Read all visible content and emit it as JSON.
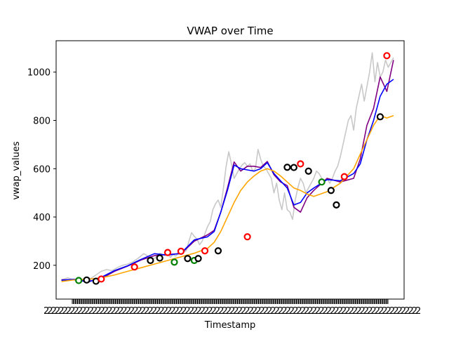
{
  "chart_data": {
    "type": "line",
    "title": "VWAP over Time",
    "xlabel": "Timestamp",
    "ylabel": "vwap_values",
    "ylim": [
      60,
      1130
    ],
    "yticks": [
      200,
      400,
      600,
      800,
      1000
    ],
    "x_tick_labels_note": "dense overlapping timestamp labels (illegible)",
    "colors": {
      "price": "#c8c8c8",
      "vwap": "#800080",
      "short_ma": "#0000ff",
      "long_ma": "#ffa500",
      "marker_red": "#ff0000",
      "marker_green": "#008000",
      "marker_black": "#000000"
    },
    "series": [
      {
        "key": "price",
        "x": [
          0,
          5,
          10,
          14,
          18,
          22,
          26,
          30,
          34,
          38,
          42,
          46,
          50,
          54,
          58,
          62,
          66,
          70,
          74,
          78,
          80,
          82,
          84,
          86,
          88,
          90,
          92,
          94,
          96,
          98,
          100,
          102,
          104,
          106,
          108,
          110,
          112,
          114,
          116,
          118,
          120,
          122,
          124,
          126,
          128,
          130,
          132,
          134,
          136,
          138,
          140,
          142,
          144,
          146,
          148,
          150,
          152,
          154,
          156,
          158,
          160,
          162,
          164,
          166,
          168,
          170,
          172,
          174,
          176,
          178,
          180,
          182,
          184,
          186,
          188,
          190,
          192,
          194,
          196,
          198,
          200,
          202,
          204,
          206,
          208,
          210,
          212,
          214,
          216,
          218,
          220,
          222,
          224,
          226,
          228,
          230,
          232,
          234,
          236,
          238,
          240,
          242,
          244,
          246,
          248,
          250
        ],
        "values": [
          140,
          148,
          138,
          128,
          150,
          145,
          160,
          175,
          182,
          178,
          190,
          200,
          205,
          215,
          230,
          248,
          235,
          228,
          250,
          240,
          255,
          232,
          245,
          238,
          250,
          270,
          255,
          260,
          300,
          335,
          320,
          310,
          285,
          300,
          330,
          360,
          380,
          430,
          455,
          470,
          440,
          520,
          610,
          670,
          620,
          560,
          580,
          600,
          615,
          625,
          610,
          620,
          590,
          600,
          680,
          640,
          610,
          600,
          580,
          560,
          500,
          540,
          470,
          430,
          500,
          430,
          420,
          390,
          470,
          520,
          560,
          540,
          500,
          520,
          540,
          560,
          590,
          580,
          560,
          545,
          560,
          540,
          560,
          590,
          610,
          650,
          700,
          750,
          800,
          820,
          760,
          850,
          900,
          950,
          880,
          940,
          1000,
          1080,
          960,
          1040,
          980,
          1000,
          1050,
          1020,
          1040,
          1060
        ],
        "lw": 1.6
      },
      {
        "key": "vwap",
        "x": [
          0,
          10,
          20,
          30,
          40,
          50,
          60,
          70,
          80,
          90,
          100,
          110,
          115,
          120,
          125,
          130,
          135,
          140,
          145,
          150,
          155,
          160,
          165,
          170,
          175,
          180,
          185,
          190,
          200,
          210,
          220,
          225,
          230,
          235,
          240,
          245,
          250
        ],
        "values": [
          140,
          140,
          133,
          145,
          175,
          197,
          222,
          240,
          245,
          248,
          300,
          326,
          345,
          420,
          520,
          628,
          590,
          610,
          610,
          605,
          630,
          575,
          545,
          530,
          440,
          420,
          480,
          510,
          560,
          545,
          560,
          640,
          780,
          850,
          980,
          920,
          1050
        ],
        "lw": 1.6
      },
      {
        "key": "short_ma",
        "x": [
          0,
          10,
          20,
          30,
          40,
          50,
          60,
          70,
          80,
          90,
          100,
          110,
          115,
          120,
          125,
          130,
          135,
          140,
          145,
          150,
          155,
          160,
          165,
          170,
          175,
          180,
          185,
          190,
          200,
          210,
          220,
          225,
          230,
          235,
          240,
          245,
          250
        ],
        "values": [
          138,
          142,
          130,
          150,
          178,
          198,
          225,
          248,
          242,
          250,
          305,
          318,
          340,
          420,
          510,
          615,
          600,
          595,
          590,
          600,
          625,
          580,
          550,
          520,
          450,
          460,
          500,
          520,
          555,
          550,
          580,
          620,
          720,
          800,
          900,
          950,
          970
        ],
        "lw": 1.6
      },
      {
        "key": "long_ma",
        "x": [
          0,
          10,
          20,
          30,
          40,
          50,
          60,
          70,
          80,
          90,
          100,
          110,
          115,
          120,
          125,
          130,
          135,
          140,
          145,
          150,
          155,
          160,
          165,
          170,
          175,
          180,
          185,
          190,
          200,
          210,
          220,
          225,
          230,
          235,
          240,
          245,
          250
        ],
        "values": [
          133,
          140,
          142,
          148,
          160,
          175,
          190,
          205,
          220,
          235,
          250,
          270,
          295,
          340,
          400,
          460,
          510,
          545,
          570,
          590,
          600,
          590,
          570,
          545,
          520,
          510,
          495,
          485,
          505,
          540,
          600,
          660,
          720,
          780,
          820,
          810,
          820
        ],
        "lw": 1.6
      }
    ],
    "markers": [
      {
        "x": 13,
        "y": 137,
        "color": "marker_green"
      },
      {
        "x": 19,
        "y": 139,
        "color": "marker_black"
      },
      {
        "x": 26,
        "y": 134,
        "color": "marker_black"
      },
      {
        "x": 30,
        "y": 143,
        "color": "marker_red"
      },
      {
        "x": 55,
        "y": 193,
        "color": "marker_red"
      },
      {
        "x": 67,
        "y": 220,
        "color": "marker_black"
      },
      {
        "x": 74,
        "y": 230,
        "color": "marker_black"
      },
      {
        "x": 80,
        "y": 253,
        "color": "marker_red"
      },
      {
        "x": 85,
        "y": 213,
        "color": "marker_green"
      },
      {
        "x": 90,
        "y": 258,
        "color": "marker_red"
      },
      {
        "x": 95,
        "y": 228,
        "color": "marker_black"
      },
      {
        "x": 100,
        "y": 220,
        "color": "marker_green"
      },
      {
        "x": 103,
        "y": 228,
        "color": "marker_black"
      },
      {
        "x": 108,
        "y": 260,
        "color": "marker_red"
      },
      {
        "x": 118,
        "y": 260,
        "color": "marker_black"
      },
      {
        "x": 140,
        "y": 318,
        "color": "marker_red"
      },
      {
        "x": 170,
        "y": 606,
        "color": "marker_black"
      },
      {
        "x": 175,
        "y": 605,
        "color": "marker_black"
      },
      {
        "x": 180,
        "y": 620,
        "color": "marker_red"
      },
      {
        "x": 186,
        "y": 590,
        "color": "marker_black"
      },
      {
        "x": 196,
        "y": 545,
        "color": "marker_green"
      },
      {
        "x": 203,
        "y": 510,
        "color": "marker_black"
      },
      {
        "x": 207,
        "y": 450,
        "color": "marker_black"
      },
      {
        "x": 213,
        "y": 567,
        "color": "marker_red"
      },
      {
        "x": 240,
        "y": 815,
        "color": "marker_black"
      },
      {
        "x": 245,
        "y": 1068,
        "color": "marker_red"
      }
    ]
  }
}
